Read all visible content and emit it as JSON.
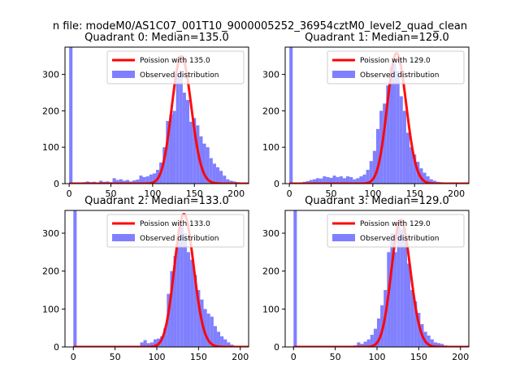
{
  "figure": {
    "suptitle": "n file: modeM0/AS1C07_001T10_9000005252_36954cztM0_level2_quad_clean"
  },
  "colors": {
    "fit_line": "#ff0000",
    "histogram": "#8080ff",
    "histogram_edge": "#8080ff",
    "axes": "#000000",
    "background": "#ffffff"
  },
  "chart_data": [
    {
      "type": "bar",
      "title": "Quadrant 0: Median=135.0",
      "legend_location": "upper right",
      "legend": {
        "line": "Poission with 135.0",
        "hist": "Observed distribution"
      },
      "xlim": [
        -5,
        215
      ],
      "ylim": [
        0,
        375
      ],
      "xticks": [
        0,
        50,
        100,
        150,
        200
      ],
      "yticks": [
        0,
        100,
        200,
        300
      ],
      "poisson_mean": 135.0,
      "poisson_peak": 350,
      "bin_width": 4,
      "bins": [
        {
          "x": 0,
          "count": 400
        },
        {
          "x": 4,
          "count": 3
        },
        {
          "x": 8,
          "count": 3
        },
        {
          "x": 12,
          "count": 2
        },
        {
          "x": 16,
          "count": 4
        },
        {
          "x": 20,
          "count": 6
        },
        {
          "x": 24,
          "count": 4
        },
        {
          "x": 28,
          "count": 5
        },
        {
          "x": 32,
          "count": 3
        },
        {
          "x": 36,
          "count": 8
        },
        {
          "x": 40,
          "count": 5
        },
        {
          "x": 44,
          "count": 6
        },
        {
          "x": 48,
          "count": 4
        },
        {
          "x": 52,
          "count": 15
        },
        {
          "x": 56,
          "count": 10
        },
        {
          "x": 60,
          "count": 12
        },
        {
          "x": 64,
          "count": 8
        },
        {
          "x": 68,
          "count": 10
        },
        {
          "x": 72,
          "count": 6
        },
        {
          "x": 76,
          "count": 9
        },
        {
          "x": 80,
          "count": 11
        },
        {
          "x": 84,
          "count": 22
        },
        {
          "x": 88,
          "count": 18
        },
        {
          "x": 92,
          "count": 20
        },
        {
          "x": 96,
          "count": 25
        },
        {
          "x": 100,
          "count": 28
        },
        {
          "x": 104,
          "count": 38
        },
        {
          "x": 108,
          "count": 58
        },
        {
          "x": 112,
          "count": 100
        },
        {
          "x": 116,
          "count": 172
        },
        {
          "x": 120,
          "count": 190
        },
        {
          "x": 124,
          "count": 200
        },
        {
          "x": 128,
          "count": 300
        },
        {
          "x": 132,
          "count": 310
        },
        {
          "x": 136,
          "count": 250
        },
        {
          "x": 140,
          "count": 230
        },
        {
          "x": 144,
          "count": 170
        },
        {
          "x": 148,
          "count": 180
        },
        {
          "x": 152,
          "count": 160
        },
        {
          "x": 156,
          "count": 130
        },
        {
          "x": 160,
          "count": 110
        },
        {
          "x": 164,
          "count": 100
        },
        {
          "x": 168,
          "count": 70
        },
        {
          "x": 172,
          "count": 55
        },
        {
          "x": 176,
          "count": 45
        },
        {
          "x": 180,
          "count": 35
        },
        {
          "x": 184,
          "count": 22
        },
        {
          "x": 188,
          "count": 12
        },
        {
          "x": 192,
          "count": 8
        },
        {
          "x": 196,
          "count": 6
        },
        {
          "x": 200,
          "count": 4
        }
      ]
    },
    {
      "type": "bar",
      "title": "Quadrant 1: Median=129.0",
      "legend_location": "upper right",
      "legend": {
        "line": "Poission with 129.0",
        "hist": "Observed distribution"
      },
      "xlim": [
        -5,
        215
      ],
      "ylim": [
        0,
        375
      ],
      "xticks": [
        0,
        50,
        100,
        150,
        200
      ],
      "yticks": [
        0,
        100,
        200,
        300
      ],
      "poisson_mean": 129.0,
      "poisson_peak": 358,
      "bin_width": 4,
      "bins": [
        {
          "x": 0,
          "count": 400
        },
        {
          "x": 4,
          "count": 3
        },
        {
          "x": 8,
          "count": 2
        },
        {
          "x": 12,
          "count": 3
        },
        {
          "x": 16,
          "count": 5
        },
        {
          "x": 20,
          "count": 7
        },
        {
          "x": 24,
          "count": 10
        },
        {
          "x": 28,
          "count": 12
        },
        {
          "x": 32,
          "count": 15
        },
        {
          "x": 36,
          "count": 14
        },
        {
          "x": 40,
          "count": 20
        },
        {
          "x": 44,
          "count": 18
        },
        {
          "x": 48,
          "count": 16
        },
        {
          "x": 52,
          "count": 22
        },
        {
          "x": 56,
          "count": 18
        },
        {
          "x": 60,
          "count": 20
        },
        {
          "x": 64,
          "count": 15
        },
        {
          "x": 68,
          "count": 20
        },
        {
          "x": 72,
          "count": 18
        },
        {
          "x": 76,
          "count": 12
        },
        {
          "x": 80,
          "count": 15
        },
        {
          "x": 84,
          "count": 20
        },
        {
          "x": 88,
          "count": 25
        },
        {
          "x": 92,
          "count": 38
        },
        {
          "x": 96,
          "count": 62
        },
        {
          "x": 100,
          "count": 90
        },
        {
          "x": 104,
          "count": 150
        },
        {
          "x": 108,
          "count": 200
        },
        {
          "x": 112,
          "count": 220
        },
        {
          "x": 116,
          "count": 270
        },
        {
          "x": 120,
          "count": 320
        },
        {
          "x": 124,
          "count": 330
        },
        {
          "x": 128,
          "count": 310
        },
        {
          "x": 132,
          "count": 240
        },
        {
          "x": 136,
          "count": 200
        },
        {
          "x": 140,
          "count": 140
        },
        {
          "x": 144,
          "count": 100
        },
        {
          "x": 148,
          "count": 80
        },
        {
          "x": 152,
          "count": 60
        },
        {
          "x": 156,
          "count": 42
        },
        {
          "x": 160,
          "count": 30
        },
        {
          "x": 164,
          "count": 20
        },
        {
          "x": 168,
          "count": 12
        },
        {
          "x": 172,
          "count": 8
        },
        {
          "x": 176,
          "count": 5
        },
        {
          "x": 180,
          "count": 4
        },
        {
          "x": 184,
          "count": 3
        },
        {
          "x": 188,
          "count": 2
        },
        {
          "x": 192,
          "count": 2
        },
        {
          "x": 196,
          "count": 2
        },
        {
          "x": 200,
          "count": 1
        }
      ]
    },
    {
      "type": "bar",
      "title": "Quadrant 2: Median=133.0",
      "legend_location": "upper right",
      "legend": {
        "line": "Poission with 133.0",
        "hist": "Observed distribution"
      },
      "xlim": [
        -10,
        210
      ],
      "ylim": [
        0,
        360
      ],
      "xticks": [
        0,
        50,
        100,
        150,
        200
      ],
      "yticks": [
        0,
        100,
        200,
        300
      ],
      "poisson_mean": 133.0,
      "poisson_peak": 350,
      "bin_width": 4,
      "bins": [
        {
          "x": 0,
          "count": 400
        },
        {
          "x": 76,
          "count": 2
        },
        {
          "x": 80,
          "count": 12
        },
        {
          "x": 84,
          "count": 18
        },
        {
          "x": 88,
          "count": 10
        },
        {
          "x": 92,
          "count": 12
        },
        {
          "x": 96,
          "count": 20
        },
        {
          "x": 100,
          "count": 22
        },
        {
          "x": 104,
          "count": 28
        },
        {
          "x": 108,
          "count": 50
        },
        {
          "x": 112,
          "count": 140
        },
        {
          "x": 116,
          "count": 200
        },
        {
          "x": 120,
          "count": 240
        },
        {
          "x": 124,
          "count": 280
        },
        {
          "x": 128,
          "count": 320
        },
        {
          "x": 132,
          "count": 300
        },
        {
          "x": 136,
          "count": 250
        },
        {
          "x": 140,
          "count": 230
        },
        {
          "x": 144,
          "count": 190
        },
        {
          "x": 148,
          "count": 150
        },
        {
          "x": 152,
          "count": 125
        },
        {
          "x": 156,
          "count": 100
        },
        {
          "x": 160,
          "count": 88
        },
        {
          "x": 164,
          "count": 80
        },
        {
          "x": 168,
          "count": 55
        },
        {
          "x": 172,
          "count": 40
        },
        {
          "x": 176,
          "count": 28
        },
        {
          "x": 180,
          "count": 20
        },
        {
          "x": 184,
          "count": 12
        },
        {
          "x": 188,
          "count": 6
        },
        {
          "x": 192,
          "count": 3
        },
        {
          "x": 196,
          "count": 2
        }
      ]
    },
    {
      "type": "bar",
      "title": "Quadrant 3: Median=129.0",
      "legend_location": "upper right",
      "legend": {
        "line": "Poission with 129.0",
        "hist": "Observed distribution"
      },
      "xlim": [
        -10,
        210
      ],
      "ylim": [
        0,
        360
      ],
      "xticks": [
        0,
        50,
        100,
        150,
        200
      ],
      "yticks": [
        0,
        100,
        200,
        300
      ],
      "poisson_mean": 129.0,
      "poisson_peak": 335,
      "bin_width": 4,
      "bins": [
        {
          "x": 0,
          "count": 400
        },
        {
          "x": 60,
          "count": 2
        },
        {
          "x": 64,
          "count": 3
        },
        {
          "x": 68,
          "count": 3
        },
        {
          "x": 72,
          "count": 4
        },
        {
          "x": 76,
          "count": 12
        },
        {
          "x": 80,
          "count": 8
        },
        {
          "x": 84,
          "count": 14
        },
        {
          "x": 88,
          "count": 20
        },
        {
          "x": 92,
          "count": 32
        },
        {
          "x": 96,
          "count": 48
        },
        {
          "x": 100,
          "count": 75
        },
        {
          "x": 104,
          "count": 110
        },
        {
          "x": 108,
          "count": 150
        },
        {
          "x": 112,
          "count": 250
        },
        {
          "x": 116,
          "count": 300
        },
        {
          "x": 120,
          "count": 250
        },
        {
          "x": 124,
          "count": 320
        },
        {
          "x": 128,
          "count": 310
        },
        {
          "x": 132,
          "count": 290
        },
        {
          "x": 136,
          "count": 220
        },
        {
          "x": 140,
          "count": 150
        },
        {
          "x": 144,
          "count": 120
        },
        {
          "x": 148,
          "count": 90
        },
        {
          "x": 152,
          "count": 60
        },
        {
          "x": 156,
          "count": 40
        },
        {
          "x": 160,
          "count": 30
        },
        {
          "x": 164,
          "count": 20
        },
        {
          "x": 168,
          "count": 12
        },
        {
          "x": 172,
          "count": 10
        },
        {
          "x": 176,
          "count": 8
        },
        {
          "x": 180,
          "count": 4
        },
        {
          "x": 184,
          "count": 3
        },
        {
          "x": 188,
          "count": 2
        }
      ]
    }
  ]
}
